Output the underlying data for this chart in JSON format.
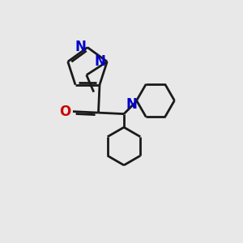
{
  "bg_color": "#e8e8e8",
  "bond_color": "#1a1a1a",
  "N_color": "#0000cc",
  "O_color": "#cc0000",
  "lw": 2.0,
  "xlim": [
    0,
    10
  ],
  "ylim": [
    0,
    10
  ]
}
